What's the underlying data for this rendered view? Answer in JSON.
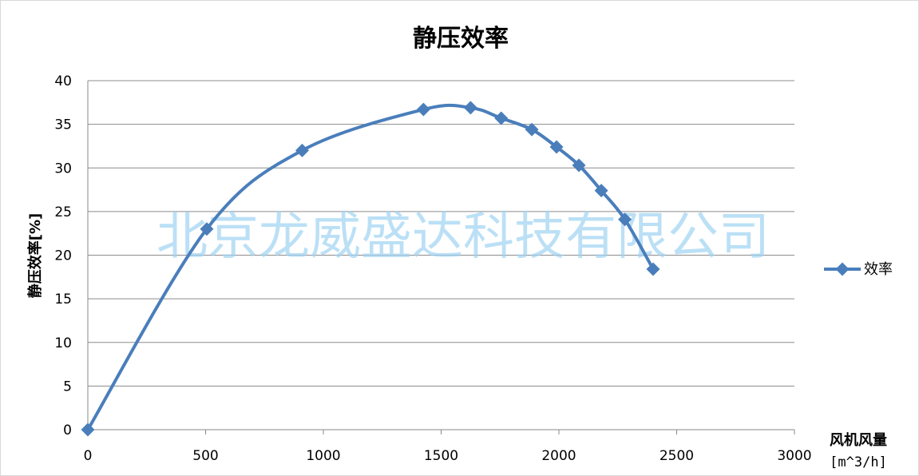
{
  "chart_data": {
    "type": "line",
    "title": "静压效率",
    "xlabel": "风机风量",
    "xlabel_unit": "[m^3/h]",
    "ylabel": "静压效率[%]",
    "xlim": [
      0,
      3000
    ],
    "ylim": [
      0,
      40
    ],
    "x_ticks": [
      "0",
      "500",
      "1000",
      "1500",
      "2000",
      "2500",
      "3000"
    ],
    "y_ticks": [
      "0",
      "5",
      "10",
      "15",
      "20",
      "25",
      "30",
      "35",
      "40"
    ],
    "grid": true,
    "legend_position": "right",
    "series": [
      {
        "name": "效率",
        "color": "#4a7ebb",
        "marker": "diamond",
        "smooth": true,
        "points": [
          {
            "x": 0,
            "y": 0
          },
          {
            "x": 505,
            "y": 23.0
          },
          {
            "x": 910,
            "y": 32.0
          },
          {
            "x": 1425,
            "y": 36.7
          },
          {
            "x": 1625,
            "y": 36.9
          },
          {
            "x": 1755,
            "y": 35.7
          },
          {
            "x": 1885,
            "y": 34.4
          },
          {
            "x": 1990,
            "y": 32.4
          },
          {
            "x": 2085,
            "y": 30.3
          },
          {
            "x": 2180,
            "y": 27.4
          },
          {
            "x": 2280,
            "y": 24.1
          },
          {
            "x": 2400,
            "y": 18.4
          }
        ]
      }
    ]
  },
  "watermark": "北京龙威盛达科技有限公司"
}
